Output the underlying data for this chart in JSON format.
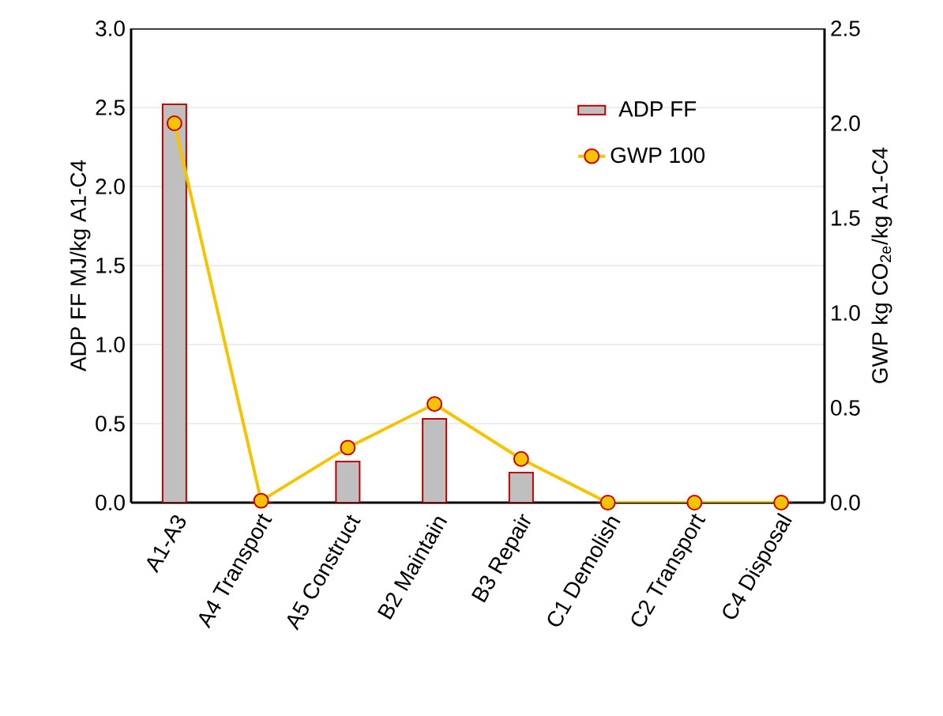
{
  "chart_data": {
    "type": "bar",
    "categories": [
      "A1-A3",
      "A4 Transport",
      "A5 Construct",
      "B2 Maintain",
      "B3 Repair",
      "C1 Demolish",
      "C2 Transport",
      "C4 Disposal"
    ],
    "series": [
      {
        "name": "ADP FF",
        "color": "#bfbfbf",
        "values": [
          2.52,
          0,
          0.26,
          0.53,
          0.19,
          0,
          0,
          0
        ]
      },
      {
        "name": "GWP 100",
        "type": "line",
        "axis": "y2",
        "color": "#f5c400",
        "marker": "circle",
        "values": [
          2.0,
          0.01,
          0.29,
          0.52,
          0.23,
          0,
          0,
          0
        ]
      }
    ],
    "ylabel": "ADP FF MJ/kg A1-C4",
    "y2label": "GWP kg CO$_{2e}$/kg A1-C4",
    "ylim": [
      0,
      3
    ],
    "yticks": [
      {
        "value": 0,
        "label": "0.0"
      },
      0.5,
      {
        "value": 1,
        "label": "1.0"
      },
      1.5,
      {
        "value": 2,
        "label": "2.0"
      },
      2.5,
      {
        "value": 3,
        "label": "3.0"
      }
    ],
    "y2lim": [
      0,
      2.5
    ],
    "y2ticks": [
      {
        "value": 0,
        "label": "0.0"
      },
      0.5,
      {
        "value": 1,
        "label": "1.0"
      },
      1.5,
      {
        "value": 2,
        "label": "2.0"
      },
      2.5
    ],
    "grid": "y",
    "legend": "top right"
  }
}
